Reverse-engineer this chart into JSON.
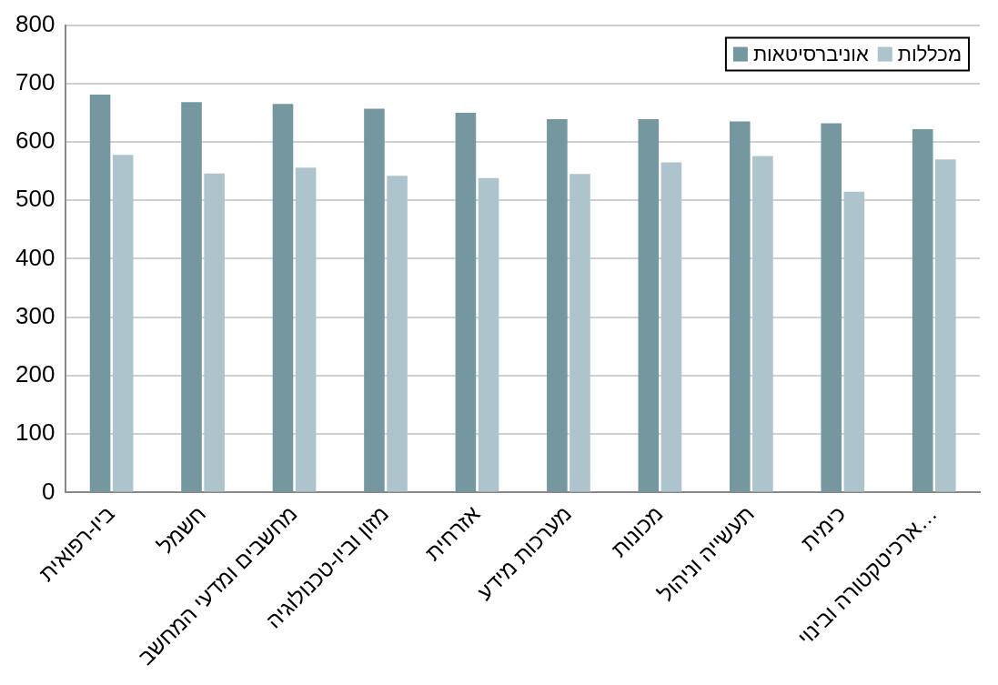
{
  "chart_data": {
    "type": "bar",
    "categories": [
      "ביו-רפואית",
      "חשמל",
      "מחשבים ומדעי המחשב",
      "מזון וביו-טכנולוגיה",
      "אזרחית",
      "מערכות מידע",
      "מכונות",
      "תעשייה וניהול",
      "כימית",
      "ארכיטקטורה ובינוי…"
    ],
    "series": [
      {
        "name": "אוניברסיטאות",
        "color": "#7598a0",
        "values": [
          681,
          668,
          665,
          657,
          650,
          639,
          639,
          635,
          632,
          622
        ]
      },
      {
        "name": "מכללות",
        "color": "#adc4cc",
        "values": [
          578,
          546,
          556,
          542,
          538,
          545,
          565,
          576,
          515,
          570
        ]
      }
    ],
    "ylim": [
      0,
      800
    ],
    "yticks": [
      0,
      100,
      200,
      300,
      400,
      500,
      600,
      700,
      800
    ],
    "grid": "y",
    "legend": "top right"
  }
}
